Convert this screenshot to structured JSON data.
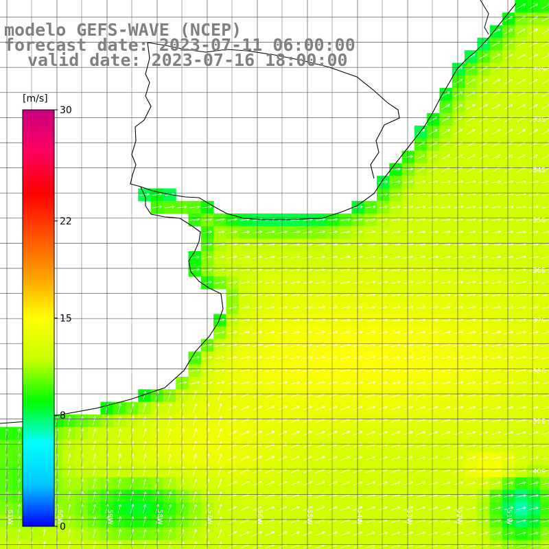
{
  "header": {
    "line1": "modelo GEFS-WAVE (NCEP)",
    "line2": "forecast date: 2023-07-11 06:00:00",
    "line3": "valid date: 2023-07-16 18:00:00"
  },
  "colorbar": {
    "unit": "[m/s]",
    "ticks": [
      {
        "label": "30",
        "value": 30
      },
      {
        "label": "22",
        "value": 22
      },
      {
        "label": "15",
        "value": 15
      },
      {
        "label": "8",
        "value": 8
      },
      {
        "label": "0",
        "value": 0
      }
    ],
    "range": [
      0,
      30
    ],
    "colors": [
      "#0000ff",
      "#00c8ff",
      "#00ffff",
      "#00ff00",
      "#c8ff00",
      "#ffff00",
      "#ffa000",
      "#ff5000",
      "#ff0000",
      "#ff0060",
      "#c80080"
    ]
  },
  "axes": {
    "lat_labels": [
      "32S",
      "33S",
      "34S",
      "35S",
      "36S",
      "37S",
      "38S",
      "39S",
      "40S"
    ],
    "lon_labels": [
      "61W",
      "60W",
      "59W",
      "58W",
      "57W",
      "56W",
      "55W",
      "54W",
      "53W",
      "52W",
      "51W",
      "50W"
    ]
  },
  "colors": {
    "land": "#ffffff",
    "grid": "#555555",
    "coast": "#000000",
    "title": "#808080",
    "arrow": "#ffffff"
  }
}
